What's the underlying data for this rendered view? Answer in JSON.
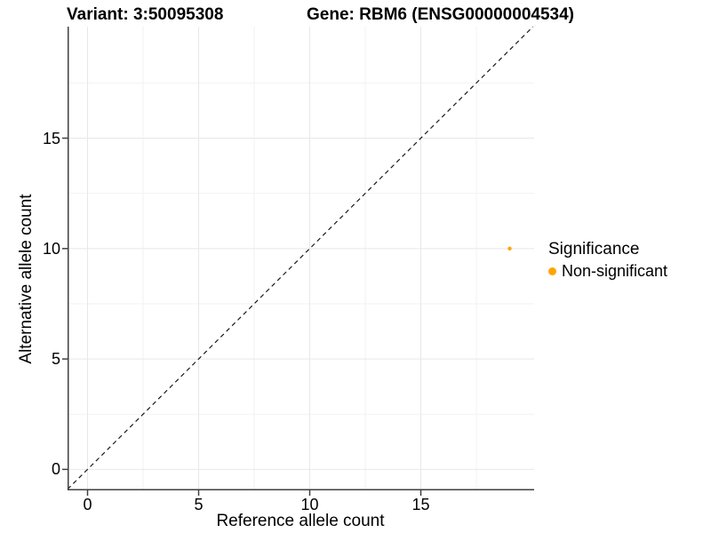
{
  "colors": {
    "background": "#FFFFFF",
    "text": "#000000",
    "axis_line": "#3F3F3F",
    "grid_major": "#E8E8E8",
    "grid_minor": "#F2F2F2",
    "identity_line": "#1A1A1A",
    "point_orange": "#FFA500"
  },
  "chart_data": {
    "type": "scatter",
    "titles": {
      "variant": "Variant: 3:50095308",
      "gene": "Gene: RBM6 (ENSG00000004534)"
    },
    "xlabel": "Reference allele count",
    "ylabel": "Alternative allele count",
    "xlim": [
      -0.9,
      20.1
    ],
    "ylim": [
      -0.95,
      20.05
    ],
    "x_ticks": [
      0,
      5,
      10,
      15
    ],
    "y_ticks": [
      0,
      5,
      10,
      15
    ],
    "x_minor_ticks": [
      2.5,
      7.5,
      12.5,
      17.5
    ],
    "y_minor_ticks": [
      2.5,
      7.5,
      12.5,
      17.5
    ],
    "grid": {
      "major": true,
      "minor": true
    },
    "identity_line": {
      "slope": 1,
      "intercept": 0,
      "style": "dashed",
      "color": "#1A1A1A"
    },
    "points": [
      {
        "x": 19,
        "y": 10,
        "series": "Non-significant",
        "color": "#FFA500",
        "radius": 2.2
      }
    ],
    "legend": {
      "title": "Significance",
      "position": "right",
      "items": [
        {
          "label": "Non-significant",
          "color": "#FFA500"
        }
      ]
    }
  }
}
